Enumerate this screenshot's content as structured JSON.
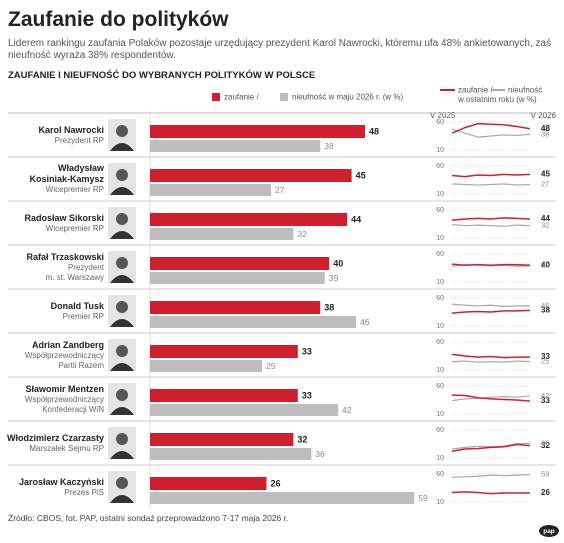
{
  "title": "Zaufanie do polityków",
  "subtitle": "Liderem rankingu zaufania Polaków pozostaje urzędujący prezydent Karol Nawrocki, któremu ufa 48% ankietowanych, zaś nieufność wyraża 38% respondentów.",
  "chart_data": {
    "type": "bar",
    "title": "ZAUFANIE I NIEUFNOŚĆ DO WYBRANYCH POLITYKÓW W POLSCE",
    "categories": [
      "Karol Nawrocki",
      "Władysław\nKosiniak-Kamysz",
      "Radosław Sikorski",
      "Rafał Trzaskowski",
      "Donald Tusk",
      "Adrian Zandberg",
      "Sławomir Mentzen",
      "Włodzimierz Czarzasty",
      "Jarosław Kaczyński"
    ],
    "roles": [
      "Prezydent RP",
      "Wicepremier RP",
      "Wicepremier RP",
      "Prezydent\nm. st. Warszawy",
      "Premier RP",
      "Współprzewodniczący\nPartii Razem",
      "Współprzewodniczący\nKonfederacji WiN",
      "Marszałek Sejmu RP",
      "Prezes PiS"
    ],
    "series": [
      {
        "name": "zaufanie /",
        "color": "#d0202e",
        "values": [
          48,
          45,
          44,
          40,
          38,
          33,
          33,
          32,
          26
        ]
      },
      {
        "name": "nieufność w maju 2026 r. (w %)",
        "color": "#bdbdbd",
        "values": [
          38,
          27,
          32,
          39,
          46,
          25,
          42,
          36,
          59
        ]
      }
    ],
    "trend": {
      "note": "w ostatnim roku (w %)",
      "xlabels": [
        "V 2025",
        "V 2026"
      ],
      "ylim": [
        10,
        60
      ],
      "yticks": [
        10,
        60
      ],
      "series": [
        {
          "name": "zaufanie /",
          "color": "#d0202e",
          "values": [
            [
              40,
              50,
              57,
              56,
              55,
              52,
              48
            ],
            [
              43,
              41,
              44,
              43,
              45,
              44,
              45
            ],
            [
              42,
              44,
              45,
              44,
              46,
              45,
              44
            ],
            [
              42,
              40,
              41,
              40,
              41,
              41,
              40
            ],
            [
              33,
              35,
              36,
              35,
              37,
              37,
              38
            ],
            [
              38,
              35,
              33,
              34,
              32,
              33,
              33
            ],
            [
              44,
              43,
              39,
              37,
              36,
              35,
              33
            ],
            [
              22,
              26,
              27,
              29,
              30,
              34,
              32
            ],
            [
              27,
              28,
              27,
              25,
              26,
              26,
              26
            ]
          ]
        },
        {
          "name": "nieufność",
          "color": "#a8a8a8",
          "values": [
            [
              47,
              40,
              33,
              35,
              37,
              36,
              38
            ],
            [
              28,
              27,
              26,
              27,
              28,
              26,
              27
            ],
            [
              34,
              32,
              33,
              32,
              31,
              33,
              32
            ],
            [
              38,
              41,
              40,
              39,
              40,
              38,
              39
            ],
            [
              49,
              47,
              46,
              47,
              45,
              46,
              46
            ],
            [
              25,
              26,
              24,
              25,
              24,
              26,
              25
            ],
            [
              34,
              37,
              38,
              40,
              41,
              40,
              42
            ],
            [
              26,
              29,
              31,
              30,
              31,
              36,
              36
            ],
            [
              54,
              55,
              56,
              58,
              57,
              58,
              59
            ]
          ]
        }
      ]
    }
  },
  "source": "Źródło: CBOS, fot. PAP, ostatni sondaż przeprowadzono 7-17 maja 2026 r.",
  "logo": "pap"
}
